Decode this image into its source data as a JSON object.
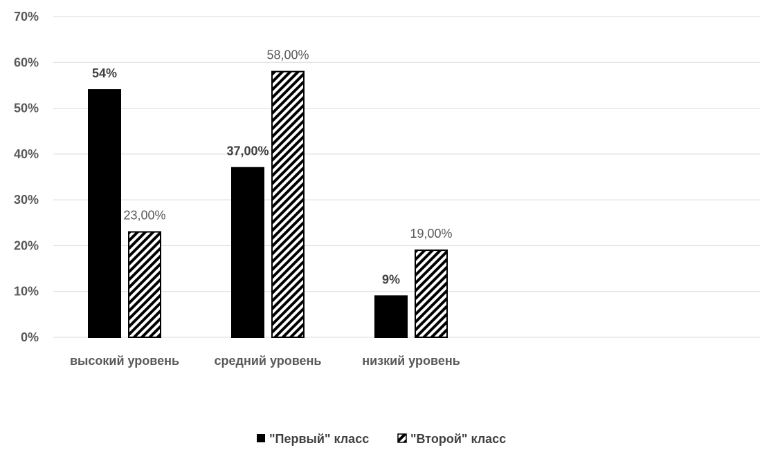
{
  "chart_data": {
    "type": "bar",
    "categories": [
      "высокий уровень",
      "средний уровень",
      "низкий уровень"
    ],
    "series": [
      {
        "name": "\"Первый\" класс",
        "values": [
          54,
          37,
          9
        ],
        "labels": [
          "54%",
          "37,00%",
          "9%"
        ],
        "color": "#000000",
        "fill": "solid"
      },
      {
        "name": "\"Второй\" класс",
        "values": [
          23,
          58,
          19
        ],
        "labels": [
          "23,00%",
          "58,00%",
          "19,00%"
        ],
        "color": "#000000",
        "fill": "diagonal-hatch"
      }
    ],
    "yticks": [
      "0%",
      "10%",
      "20%",
      "30%",
      "40%",
      "50%",
      "60%",
      "70%"
    ],
    "ylim": [
      0,
      70
    ],
    "grid": true,
    "legend": "bottom-center"
  },
  "colors": {
    "grid": "#d9d9d9",
    "axis_text": "#595959"
  }
}
